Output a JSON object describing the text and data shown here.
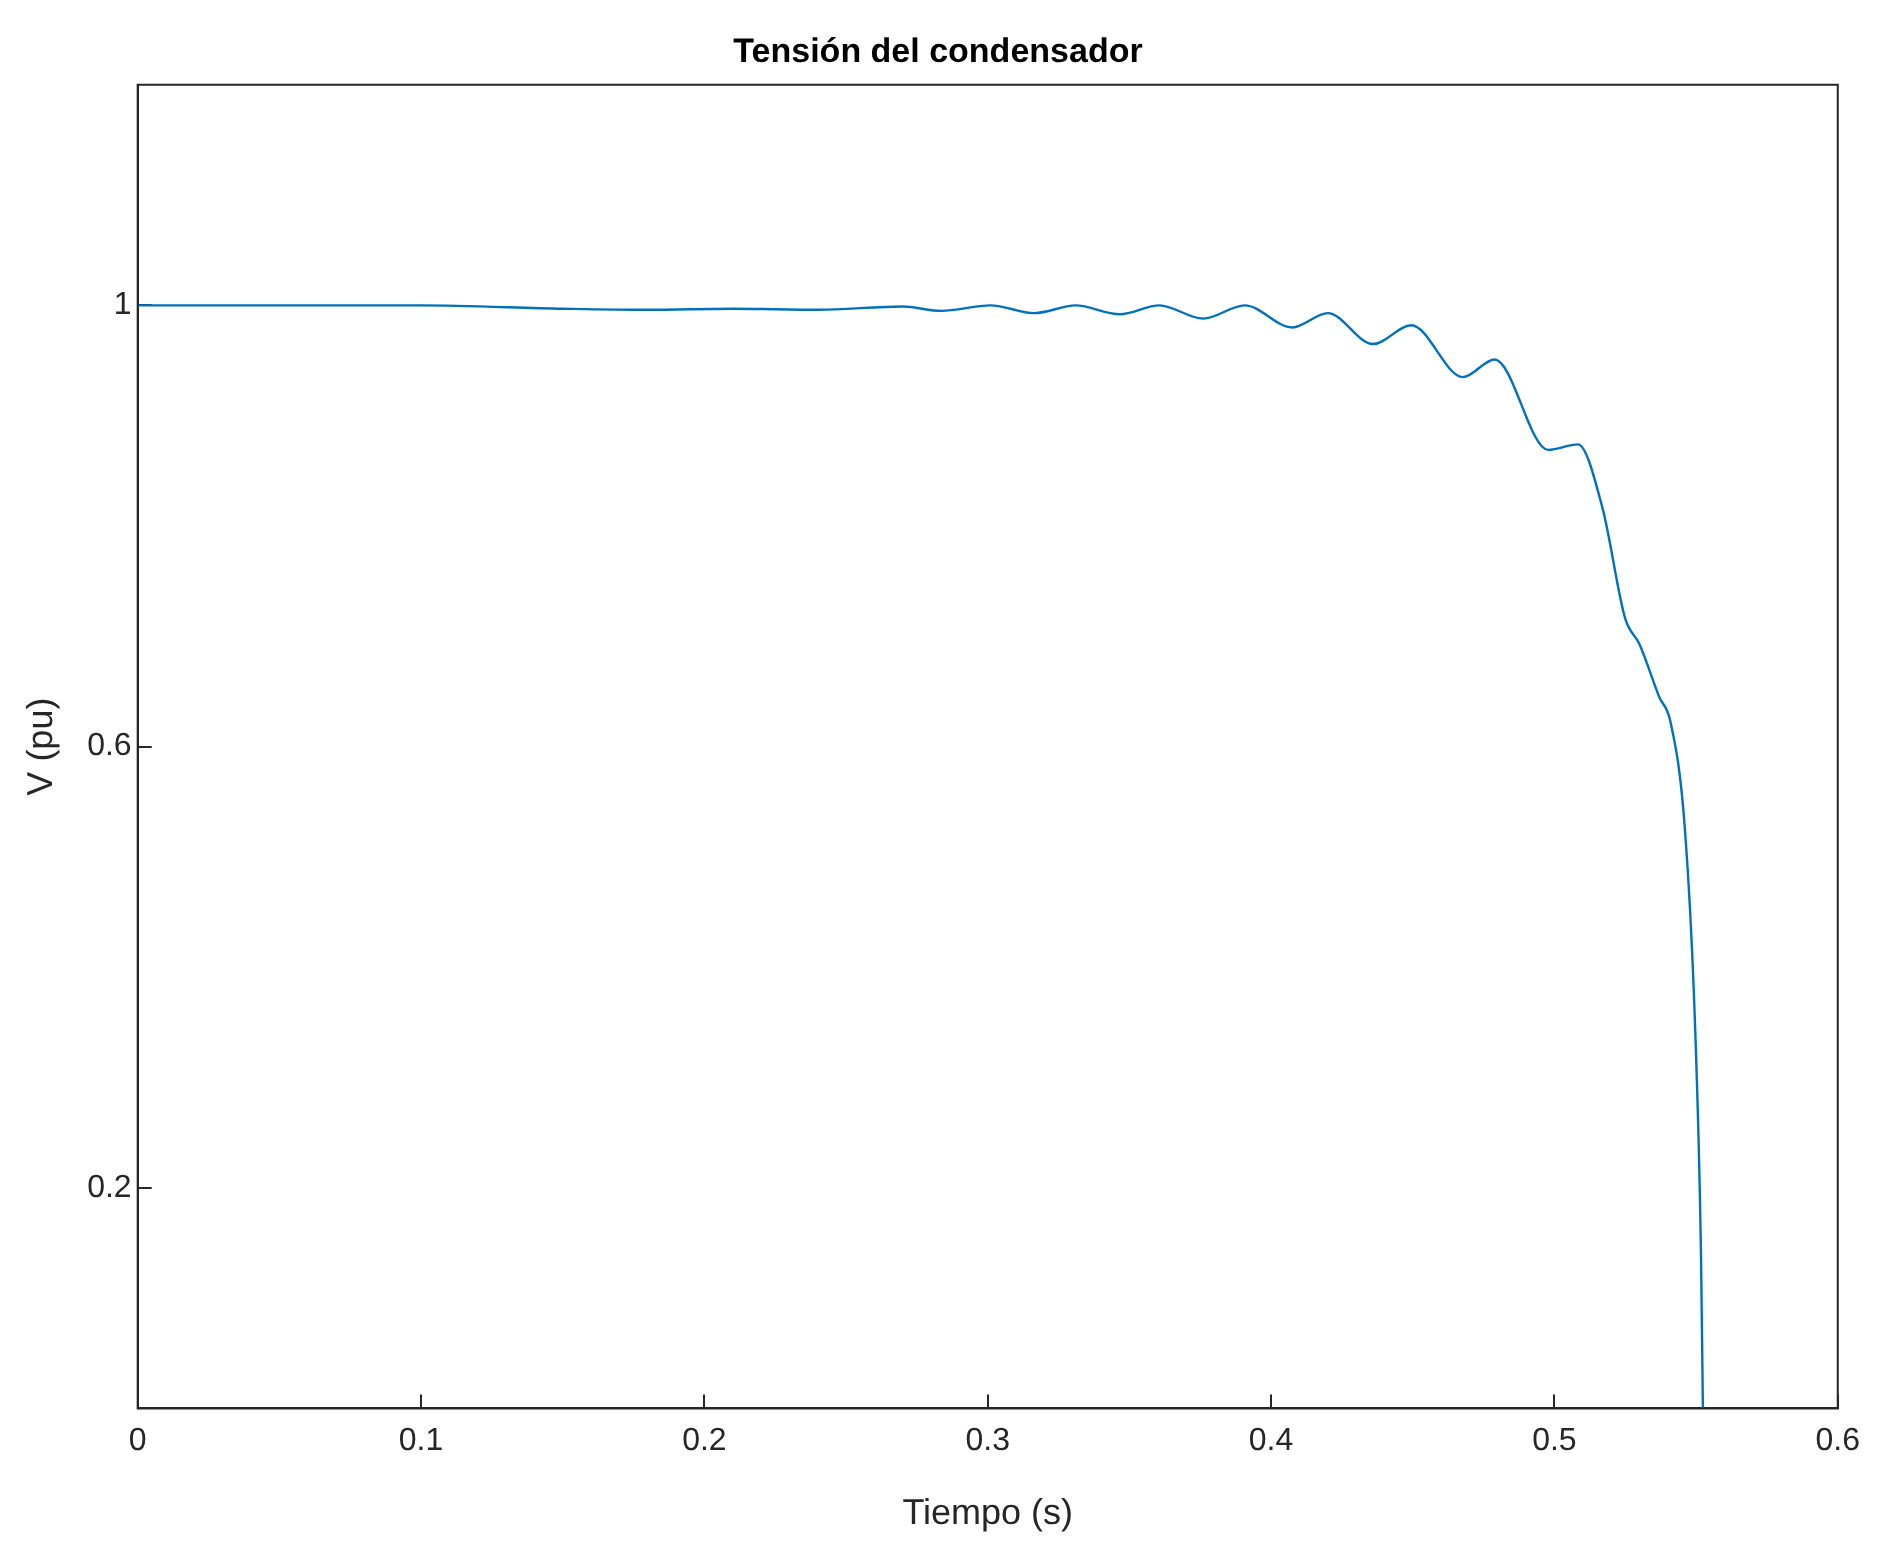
{
  "chart_data": {
    "type": "line",
    "title": "Tensión del condensador",
    "xlabel": "Tiempo (s)",
    "ylabel": "V (pu)",
    "x": [
      0,
      0.05,
      0.1,
      0.15,
      0.18,
      0.21,
      0.24,
      0.27,
      0.2836,
      0.301,
      0.3165,
      0.331,
      0.3466,
      0.3606,
      0.376,
      0.3907,
      0.4075,
      0.42,
      0.436,
      0.4495,
      0.4677,
      0.4789,
      0.4978,
      0.5083,
      0.517,
      0.525,
      0.53,
      0.537,
      0.541,
      0.546,
      0.5496,
      0.5517,
      0.5524
    ],
    "series": [
      {
        "color": "#0072bd",
        "values": [
          1,
          1,
          1,
          0.997,
          0.996,
          0.997,
          0.996,
          0.999,
          0.995,
          1,
          0.993,
          1,
          0.992,
          1,
          0.988,
          1,
          0.98,
          0.993,
          0.965,
          0.982,
          0.935,
          0.951,
          0.869,
          0.874,
          0.816,
          0.716,
          0.693,
          0.645,
          0.622,
          0.527,
          0.35,
          0.145,
          0
        ]
      }
    ],
    "xlim": [
      0,
      0.6
    ],
    "xticks": [
      0,
      0.1,
      0.2,
      0.3,
      0.4,
      0.5,
      0.6
    ],
    "ylim": [
      0,
      1.2
    ],
    "yticks": [
      0.2,
      0.6,
      1
    ],
    "grid": false,
    "legend": false,
    "marker": "none",
    "line_style": "solid"
  }
}
